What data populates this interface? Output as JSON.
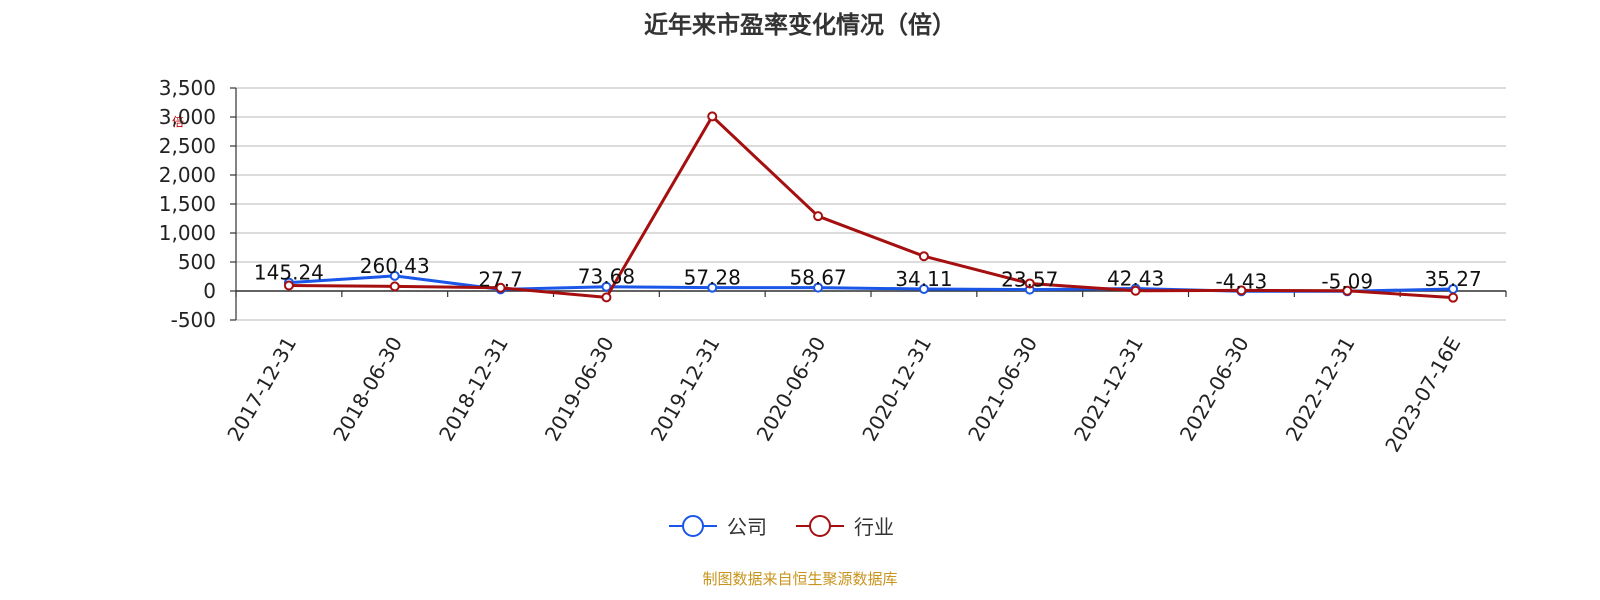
{
  "chart_data": {
    "type": "line",
    "title": "近年来市盈率变化情况（倍）",
    "ylabel": "倍",
    "ylim": [
      -500,
      3500
    ],
    "yticks": [
      -500,
      0,
      500,
      1000,
      1500,
      2000,
      2500,
      3000,
      3500
    ],
    "ytick_labels": [
      "-500",
      "0",
      "500",
      "1,000",
      "1,500",
      "2,000",
      "2,500",
      "3,000",
      "3,500"
    ],
    "categories": [
      "2017-12-31",
      "2018-06-30",
      "2018-12-31",
      "2019-06-30",
      "2019-12-31",
      "2020-06-30",
      "2020-12-31",
      "2021-06-30",
      "2021-12-31",
      "2022-06-30",
      "2022-12-31",
      "2023-07-16E"
    ],
    "grid": true,
    "legend_position": "bottom",
    "series": [
      {
        "name": "公司",
        "color": "#1a56e8",
        "values": [
          145.24,
          260.43,
          27.7,
          73.68,
          57.28,
          58.67,
          34.11,
          23.57,
          42.43,
          -4.43,
          -5.09,
          35.27
        ],
        "labels": [
          "145.24",
          "260.43",
          "27.7",
          "73.68",
          "57.28",
          "58.67",
          "34.11",
          "23.57",
          "42.43",
          "-4.43",
          "-5.09",
          "35.27"
        ]
      },
      {
        "name": "行业",
        "color": "#a50f0f",
        "values": [
          95,
          80,
          55,
          -110,
          3010,
          1290,
          600,
          130,
          5,
          10,
          5,
          -115
        ]
      }
    ],
    "source": "制图数据来自恒生聚源数据库"
  }
}
